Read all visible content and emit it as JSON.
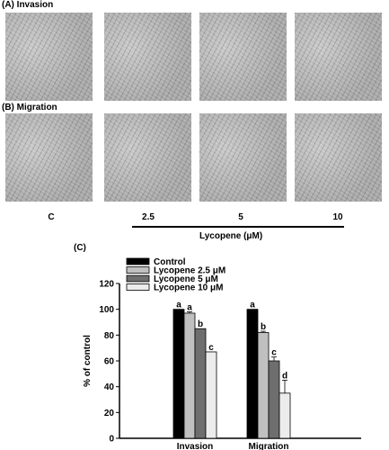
{
  "panels": {
    "a_label": "(A) Invasion",
    "b_label": "(B) Migration",
    "c_label": "(C)"
  },
  "conditions": [
    "C",
    "2.5",
    "5",
    "10"
  ],
  "lycopene_label": "Lycopene (μM)",
  "chart_data": {
    "type": "bar",
    "categories": [
      "Invasion",
      "Migration"
    ],
    "series": [
      {
        "name": "Control",
        "values": [
          100,
          100
        ],
        "errors": [
          0,
          0
        ],
        "color": "#000000"
      },
      {
        "name": "Lycopene 2.5 μM",
        "values": [
          97,
          82
        ],
        "errors": [
          1,
          1
        ],
        "color": "#c0c0c0"
      },
      {
        "name": "Lycopene 5 μM",
        "values": [
          85,
          60
        ],
        "errors": [
          0,
          3
        ],
        "color": "#6e6e6e"
      },
      {
        "name": "Lycopene 10 μM",
        "values": [
          67,
          35
        ],
        "errors": [
          0,
          10
        ],
        "color": "#ececec"
      }
    ],
    "letters": [
      [
        "a",
        "a",
        "b",
        "c"
      ],
      [
        "a",
        "b",
        "c",
        "d"
      ]
    ],
    "ylabel": "% of control",
    "ylim": [
      0,
      120
    ],
    "yticks": [
      0,
      20,
      40,
      60,
      80,
      100,
      120
    ],
    "legend_position": "top-left",
    "grid": false
  }
}
